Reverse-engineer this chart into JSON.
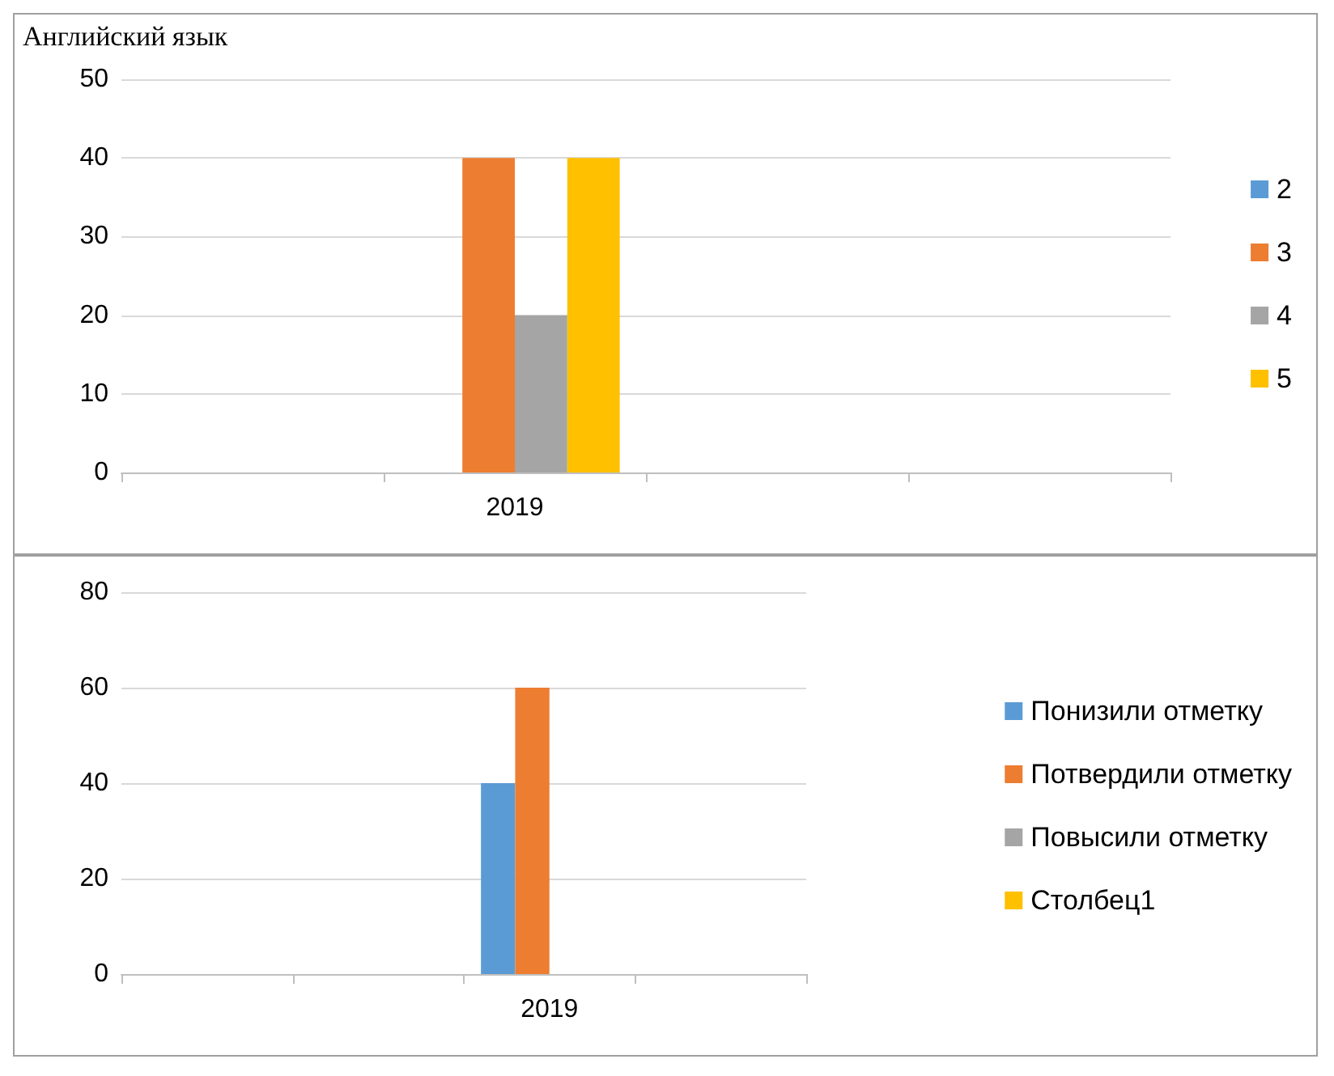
{
  "chart_data": [
    {
      "type": "bar",
      "title": "Английский язык",
      "categories": [
        null,
        "2019",
        null,
        null
      ],
      "series": [
        {
          "name": "2",
          "color": "#5b9bd5",
          "values": [
            null,
            0,
            null,
            null
          ]
        },
        {
          "name": "3",
          "color": "#ed7d31",
          "values": [
            null,
            40,
            null,
            null
          ]
        },
        {
          "name": "4",
          "color": "#a5a5a5",
          "values": [
            null,
            20,
            null,
            null
          ]
        },
        {
          "name": "5",
          "color": "#ffc000",
          "values": [
            null,
            40,
            null,
            null
          ]
        }
      ],
      "ylim": [
        0,
        50
      ],
      "yticks": [
        0,
        10,
        20,
        30,
        40,
        50
      ],
      "grid": "y",
      "legend": "right"
    },
    {
      "type": "bar",
      "categories": [
        null,
        null,
        "2019",
        null
      ],
      "series": [
        {
          "name": "Понизили отметку",
          "color": "#5b9bd5",
          "values": [
            null,
            null,
            40,
            null
          ]
        },
        {
          "name": "Потвердили отметку",
          "color": "#ed7d31",
          "values": [
            null,
            null,
            60,
            null
          ]
        },
        {
          "name": "Повысили отметку",
          "color": "#a5a5a5",
          "values": [
            null,
            null,
            0,
            null
          ]
        },
        {
          "name": "Столбец1",
          "color": "#ffc000",
          "values": [
            null,
            null,
            0,
            null
          ]
        }
      ],
      "ylim": [
        0,
        80
      ],
      "yticks": [
        0,
        20,
        40,
        60,
        80
      ],
      "grid": "y",
      "legend": "right"
    }
  ]
}
